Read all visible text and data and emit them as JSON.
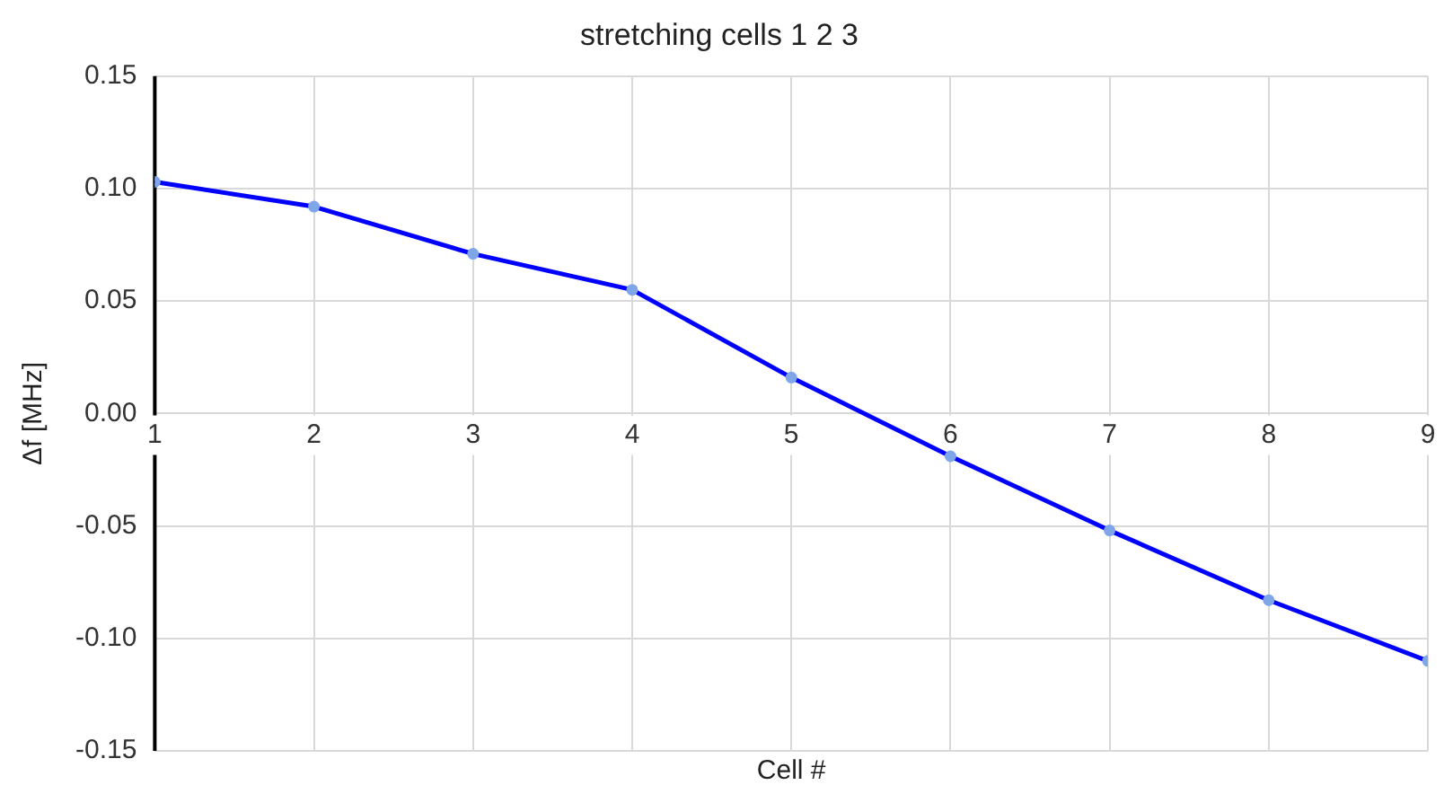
{
  "chart_data": {
    "type": "line",
    "title": "stretching cells 1 2 3",
    "xlabel": "Cell #",
    "ylabel": "Δf [MHz]",
    "x": [
      1,
      2,
      3,
      4,
      5,
      6,
      7,
      8,
      9
    ],
    "series": [
      {
        "color": "#0000ff",
        "values": [
          0.103,
          0.092,
          0.071,
          0.055,
          0.016,
          -0.019,
          -0.052,
          -0.083,
          -0.11
        ]
      }
    ],
    "xlim": [
      1,
      9
    ],
    "xticks": [
      1,
      2,
      3,
      4,
      5,
      6,
      7,
      8,
      9
    ],
    "ylim": [
      -0.15,
      0.15
    ],
    "yticks": [
      {
        "value": -0.15,
        "label": "-0.15"
      },
      {
        "value": -0.1,
        "label": "-0.10"
      },
      {
        "value": -0.05,
        "label": "-0.05"
      },
      {
        "value": 0,
        "label": "0.00"
      },
      {
        "value": 0.05,
        "label": "0.05"
      },
      {
        "value": 0.1,
        "label": "0.10"
      },
      {
        "value": 0.15,
        "label": "0.15"
      }
    ],
    "grid": true,
    "legend": false,
    "marker": "circle",
    "line_style": "solid"
  }
}
